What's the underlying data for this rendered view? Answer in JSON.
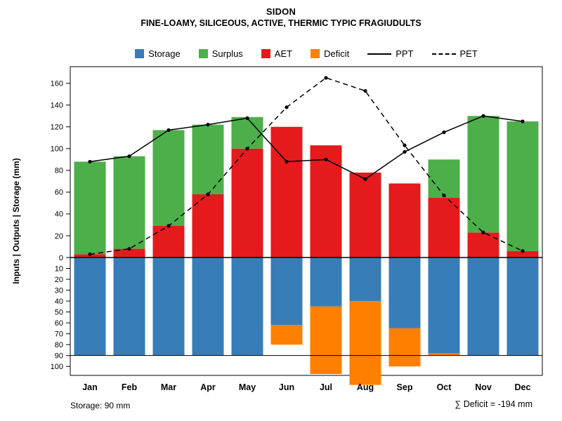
{
  "title": "SIDON",
  "subtitle": "FINE-LOAMY, SILICEOUS, ACTIVE, THERMIC TYPIC FRAGIUDULTS",
  "footer": {
    "storage_note": "Storage: 90 mm",
    "deficit_note": "∑ Deficit = -194 mm"
  },
  "legend": [
    {
      "label": "Storage",
      "kind": "swatch",
      "color": "#377EB8"
    },
    {
      "label": "Surplus",
      "kind": "swatch",
      "color": "#4DAF4A"
    },
    {
      "label": "AET",
      "kind": "swatch",
      "color": "#E41A1C"
    },
    {
      "label": "Deficit",
      "kind": "swatch",
      "color": "#FF7F00"
    },
    {
      "label": "PPT",
      "kind": "line",
      "color": "#000000"
    },
    {
      "label": "PET",
      "kind": "dashed-line",
      "color": "#000000"
    }
  ],
  "chart_data": {
    "type": "bar",
    "title": "SIDON",
    "subtitle": "FINE-LOAMY, SILICEOUS, ACTIVE, THERMIC TYPIC FRAGIUDULTS",
    "ylabel": "Inputs | Outputs | Storage (mm)",
    "categories": [
      "Jan",
      "Feb",
      "Mar",
      "Apr",
      "May",
      "Jun",
      "Jul",
      "Aug",
      "Sep",
      "Oct",
      "Nov",
      "Dec"
    ],
    "series": [
      {
        "name": "AET",
        "direction": "up",
        "color": "#E41A1C",
        "values": [
          3,
          8,
          29,
          58,
          100,
          120,
          103,
          78,
          68,
          55,
          23,
          6
        ]
      },
      {
        "name": "Surplus",
        "direction": "up",
        "color": "#4DAF4A",
        "values": [
          85,
          85,
          88,
          64,
          29,
          0,
          0,
          0,
          0,
          35,
          107,
          119
        ]
      },
      {
        "name": "Storage",
        "direction": "down",
        "color": "#377EB8",
        "values": [
          90,
          90,
          90,
          90,
          90,
          62,
          45,
          40,
          65,
          88,
          90,
          90
        ]
      },
      {
        "name": "Deficit",
        "direction": "down",
        "color": "#FF7F00",
        "values": [
          0,
          0,
          0,
          0,
          0,
          18,
          62,
          77,
          35,
          2,
          0,
          0
        ]
      }
    ],
    "lines": [
      {
        "name": "PPT",
        "style": "solid",
        "values": [
          88,
          93,
          117,
          122,
          128,
          88,
          90,
          72,
          97,
          115,
          130,
          125
        ]
      },
      {
        "name": "PET",
        "style": "dashed",
        "values": [
          3,
          8,
          29,
          58,
          100,
          138,
          165,
          153,
          103,
          57,
          23,
          6
        ]
      }
    ],
    "y_axis": {
      "upper_ticks": [
        160,
        140,
        120,
        100,
        80,
        60,
        40,
        20,
        0
      ],
      "lower_ticks": [
        10,
        20,
        30,
        40,
        50,
        60,
        70,
        80,
        90,
        100
      ],
      "upper_max": 170,
      "lower_max": 108
    },
    "storage_line_mm": 90,
    "grid": false,
    "legend_position": "top"
  }
}
